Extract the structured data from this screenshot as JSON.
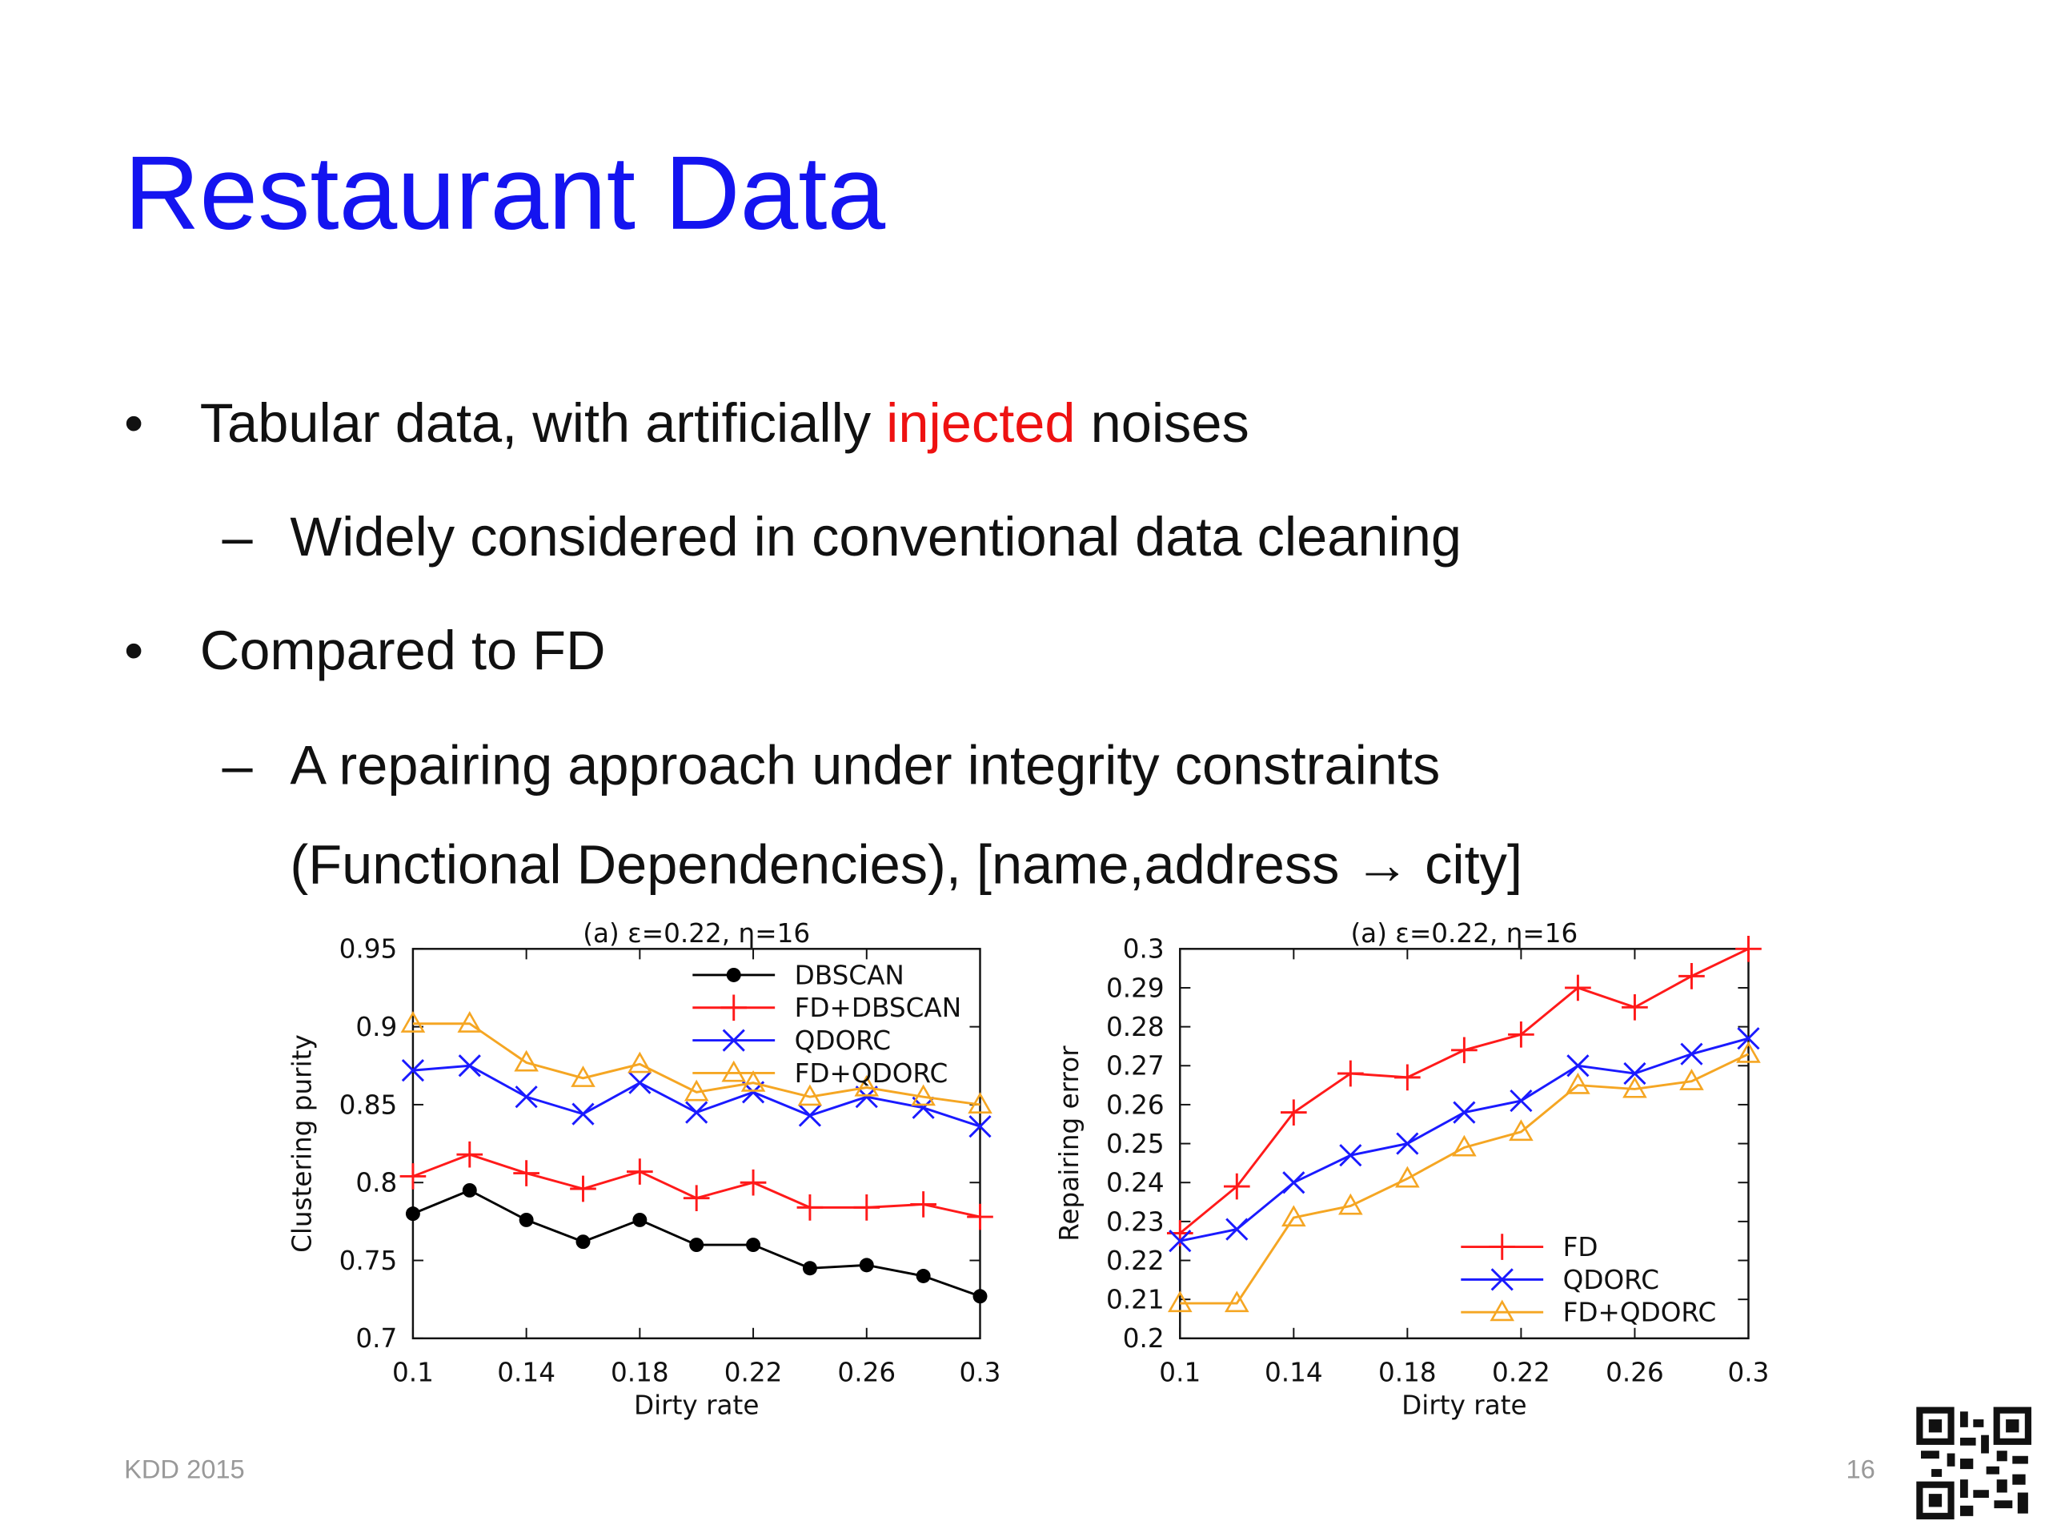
{
  "slide": {
    "title": "Restaurant Data",
    "bullet_1": [
      "Tabular data, with artificially ",
      "injected",
      " noises"
    ],
    "sub_1": "Widely considered in conventional data cleaning",
    "bullet_2": "Compared to FD",
    "sub_2": [
      "A repairing approach under integrity constraints",
      "(Functional Dependencies), [name,address → city]"
    ],
    "footer_left": "KDD 2015",
    "page_number": "16"
  },
  "chart_data": [
    {
      "type": "line",
      "title": "(a) ε=0.22, η=16",
      "xlabel": "Dirty rate",
      "ylabel": "Clustering purity",
      "x": [
        0.1,
        0.12,
        0.14,
        0.16,
        0.18,
        0.2,
        0.22,
        0.24,
        0.26,
        0.28,
        0.3
      ],
      "xlim": [
        0.1,
        0.3
      ],
      "xticks": [
        0.1,
        0.14,
        0.18,
        0.22,
        0.26,
        0.3
      ],
      "ylim": [
        0.7,
        0.95
      ],
      "yticks": [
        0.7,
        0.75,
        0.8,
        0.85,
        0.9,
        0.95
      ],
      "legend": "upper right",
      "series": [
        {
          "name": "DBSCAN",
          "color": "#000000",
          "marker": "circle",
          "values": [
            0.78,
            0.795,
            0.776,
            0.762,
            0.776,
            0.76,
            0.76,
            0.745,
            0.747,
            0.74,
            0.727
          ]
        },
        {
          "name": "FD+DBSCAN",
          "color": "#ff1a1a",
          "marker": "plus",
          "values": [
            0.804,
            0.818,
            0.806,
            0.796,
            0.807,
            0.79,
            0.8,
            0.784,
            0.784,
            0.786,
            0.778
          ]
        },
        {
          "name": "QDORC",
          "color": "#1a1aff",
          "marker": "cross",
          "values": [
            0.872,
            0.875,
            0.855,
            0.844,
            0.864,
            0.845,
            0.858,
            0.843,
            0.855,
            0.848,
            0.836
          ]
        },
        {
          "name": "FD+QDORC",
          "color": "#f5a623",
          "marker": "triangle",
          "values": [
            0.902,
            0.902,
            0.877,
            0.867,
            0.876,
            0.858,
            0.864,
            0.855,
            0.861,
            0.855,
            0.85
          ]
        }
      ]
    },
    {
      "type": "line",
      "title": "(a) ε=0.22, η=16",
      "xlabel": "Dirty rate",
      "ylabel": "Repairing error",
      "x": [
        0.1,
        0.12,
        0.14,
        0.16,
        0.18,
        0.2,
        0.22,
        0.24,
        0.26,
        0.28,
        0.3
      ],
      "xlim": [
        0.1,
        0.3
      ],
      "xticks": [
        0.1,
        0.14,
        0.18,
        0.22,
        0.26,
        0.3
      ],
      "ylim": [
        0.2,
        0.3
      ],
      "yticks": [
        0.2,
        0.21,
        0.22,
        0.23,
        0.24,
        0.25,
        0.26,
        0.27,
        0.28,
        0.29,
        0.3
      ],
      "legend": "lower right",
      "series": [
        {
          "name": "FD",
          "color": "#ff1a1a",
          "marker": "plus",
          "values": [
            0.227,
            0.239,
            0.258,
            0.268,
            0.267,
            0.274,
            0.278,
            0.29,
            0.285,
            0.293,
            0.3
          ]
        },
        {
          "name": "QDORC",
          "color": "#1a1aff",
          "marker": "cross",
          "values": [
            0.225,
            0.228,
            0.24,
            0.247,
            0.25,
            0.258,
            0.261,
            0.27,
            0.268,
            0.273,
            0.277
          ]
        },
        {
          "name": "FD+QDORC",
          "color": "#f5a623",
          "marker": "triangle",
          "values": [
            0.209,
            0.209,
            0.231,
            0.234,
            0.241,
            0.249,
            0.253,
            0.265,
            0.264,
            0.266,
            0.273
          ]
        }
      ]
    }
  ]
}
